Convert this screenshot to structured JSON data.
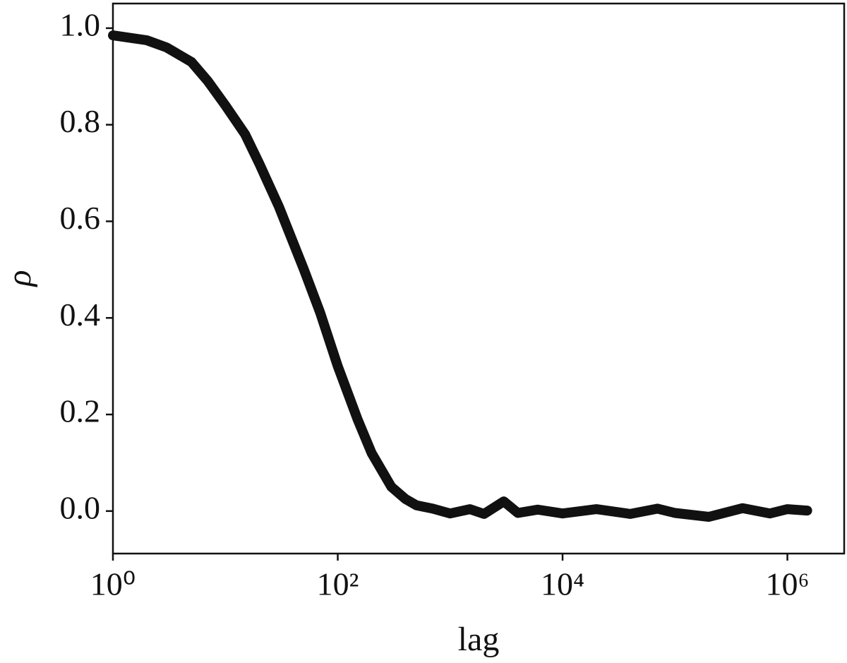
{
  "chart_data": {
    "type": "line",
    "x_label": "lag",
    "y_label": "ρ",
    "xscale": "log",
    "x": [
      1,
      2,
      3,
      5,
      7,
      10,
      15,
      20,
      30,
      50,
      70,
      100,
      150,
      200,
      300,
      400,
      500,
      700,
      1000,
      1500,
      2000,
      3000,
      4000,
      6000,
      10000,
      20000,
      40000,
      70000,
      100000,
      200000,
      400000,
      700000,
      1000000,
      1500000
    ],
    "series": [
      {
        "color": "#111111",
        "values": [
          0.985,
          0.975,
          0.96,
          0.93,
          0.89,
          0.84,
          0.78,
          0.72,
          0.63,
          0.5,
          0.41,
          0.3,
          0.19,
          0.12,
          0.05,
          0.025,
          0.012,
          0.005,
          -0.005,
          0.004,
          -0.006,
          0.02,
          -0.004,
          0.003,
          -0.005,
          0.004,
          -0.006,
          0.005,
          -0.004,
          -0.012,
          0.006,
          -0.005,
          0.004,
          0.001
        ]
      }
    ],
    "xlim": [
      1,
      3200000
    ],
    "ylim": [
      -0.088,
      1.051
    ],
    "xticks": [
      {
        "value": 1,
        "label": "10⁰"
      },
      {
        "value": 100,
        "label": "10²"
      },
      {
        "value": 10000,
        "label": "10⁴"
      },
      {
        "value": 1000000,
        "label": "10⁶"
      }
    ],
    "yticks": [
      {
        "value": 0,
        "label": "0.0"
      },
      {
        "value": 0.2,
        "label": "0.2"
      },
      {
        "value": 0.4,
        "label": "0.4"
      },
      {
        "value": 0.6,
        "label": "0.6"
      },
      {
        "value": 0.8,
        "label": "0.8"
      },
      {
        "value": 1,
        "label": "1.0"
      }
    ],
    "grid": false
  }
}
